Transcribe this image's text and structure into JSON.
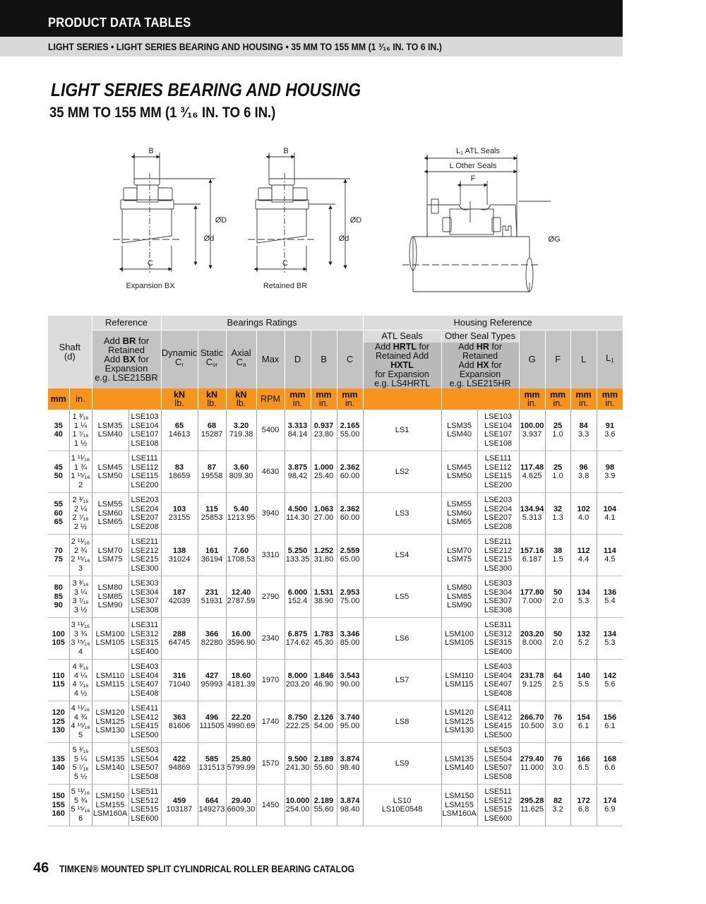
{
  "header": {
    "section": "PRODUCT DATA TABLES",
    "breadcrumb": "LIGHT SERIES • LIGHT SERIES BEARING AND HOUSING • 35 MM TO 155 MM (1 ³⁄₁₆ IN. TO 6 IN.)"
  },
  "title": "LIGHT SERIES BEARING AND HOUSING",
  "subtitle": "35 MM TO 155 MM (1 ³⁄₁₆ IN. TO 6 IN.)",
  "diagrams": {
    "expansion": {
      "b": "B",
      "c": "C",
      "od": "ØD",
      "id": "Ød",
      "caption": "Expansion BX"
    },
    "retained": {
      "b": "B",
      "c": "C",
      "od": "ØD",
      "id": "Ød",
      "caption": "Retained  BR"
    },
    "housing": {
      "l1": "L",
      "l1_sub": "1",
      "l1_text": " ATL Seals",
      "l": "L Other Seals",
      "f": "F",
      "g": "ØG"
    }
  },
  "table": {
    "headers": {
      "shaft": "Shaft\n(d)",
      "reference": "Reference",
      "reference_note": {
        "a1": "Add ",
        "b1": "BR",
        "c1": " for\nRetained\n",
        "a2": "Add ",
        "b2": "BX",
        "c2": " for\nExpansion\ne.g. LSE215BR"
      },
      "bearings_ratings": "Bearings Ratings",
      "dynamic": "Dynamic",
      "dynamic_sym": "C",
      "dynamic_sub": "r",
      "static": "Static",
      "static_sym": "C",
      "static_sub": "or",
      "axial": "Axial",
      "axial_sym": "C",
      "axial_sub": "a",
      "max": "Max",
      "d": "D",
      "b": "B",
      "c": "C",
      "housing_reference": "Housing Reference",
      "atl_seals": "ATL Seals",
      "atl_note": {
        "a1": "Add ",
        "b1": "HRTL",
        "c1": " for\nRetained Add ",
        "b2": "HXTL",
        "c2": "\nfor Expansion\ne.g. LS4HRTL"
      },
      "other_seals": "Other Seal Types",
      "other_note": {
        "a1": "Add ",
        "b1": "HR",
        "c1": " for Retained\nAdd ",
        "b2": "HX",
        "c2": " for\nExpansion\ne.g. LSE215HR"
      },
      "g": "G",
      "f": "F",
      "l": "L",
      "l1": "L",
      "l1_sub": "1"
    },
    "units": {
      "mm": "mm",
      "in": "in.",
      "kn": "kN",
      "lb": "lb.",
      "rpm": "RPM",
      "mm_in_top": "mm",
      "mm_in_bottom": "in."
    },
    "rows": [
      {
        "mm": [
          "35",
          "40"
        ],
        "inch": [
          "1 ³⁄₁₆",
          "1 ¼",
          "1 ⁷⁄₁₆",
          "1 ½"
        ],
        "lsm": [
          "LSM35",
          "LSM40"
        ],
        "lse": [
          "LSE103",
          "LSE104",
          "LSE107",
          "LSE108"
        ],
        "dynamic": [
          "65",
          "14613"
        ],
        "static": [
          "68",
          "15287"
        ],
        "axial": [
          "3.20",
          "719.38"
        ],
        "rpm": "5400",
        "D": [
          "3.313",
          "84.14"
        ],
        "B": [
          "0.937",
          "23.80"
        ],
        "C": [
          "2.165",
          "55.00"
        ],
        "atl": [
          "LS1"
        ],
        "G": [
          "100.00",
          "3.937"
        ],
        "F": [
          "25",
          "1.0"
        ],
        "L": [
          "84",
          "3.3"
        ],
        "L1": [
          "91",
          "3.6"
        ]
      },
      {
        "mm": [
          "45",
          "50"
        ],
        "inch": [
          "1 ¹¹⁄₁₆",
          "1 ¾",
          "1 ¹⁵⁄₁₆",
          "2"
        ],
        "lsm": [
          "LSM45",
          "LSM50"
        ],
        "lse": [
          "LSE111",
          "LSE112",
          "LSE115",
          "LSE200"
        ],
        "dynamic": [
          "83",
          "18659"
        ],
        "static": [
          "87",
          "19558"
        ],
        "axial": [
          "3.60",
          "809.30"
        ],
        "rpm": "4630",
        "D": [
          "3.875",
          "98.42"
        ],
        "B": [
          "1.000",
          "25.40"
        ],
        "C": [
          "2.362",
          "60.00"
        ],
        "atl": [
          "LS2"
        ],
        "G": [
          "117.48",
          "4.625"
        ],
        "F": [
          "25",
          "1.0"
        ],
        "L": [
          "96",
          "3.8"
        ],
        "L1": [
          "98",
          "3.9"
        ]
      },
      {
        "mm": [
          "55",
          "60",
          "65"
        ],
        "inch": [
          "2 ³⁄₁₆",
          "2 ¼",
          "2 ⁷⁄₁₆",
          "2 ½"
        ],
        "lsm": [
          "LSM55",
          "LSM60",
          "LSM65"
        ],
        "lse": [
          "LSE203",
          "LSE204",
          "LSE207",
          "LSE208"
        ],
        "dynamic": [
          "103",
          "23155"
        ],
        "static": [
          "115",
          "25853"
        ],
        "axial": [
          "5.40",
          "1213.95"
        ],
        "rpm": "3940",
        "D": [
          "4.500",
          "114.30"
        ],
        "B": [
          "1.063",
          "27.00"
        ],
        "C": [
          "2.362",
          "60.00"
        ],
        "atl": [
          "LS3"
        ],
        "G": [
          "134.94",
          "5.313"
        ],
        "F": [
          "32",
          "1.3"
        ],
        "L": [
          "102",
          "4.0"
        ],
        "L1": [
          "104",
          "4.1"
        ]
      },
      {
        "mm": [
          "70",
          "75"
        ],
        "inch": [
          "2 ¹¹⁄₁₆",
          "2 ¾",
          "2 ¹⁵⁄₁₆",
          "3"
        ],
        "lsm": [
          "LSM70",
          "LSM75"
        ],
        "lse": [
          "LSE211",
          "LSE212",
          "LSE215",
          "LSE300"
        ],
        "dynamic": [
          "138",
          "31024"
        ],
        "static": [
          "161",
          "36194"
        ],
        "axial": [
          "7.60",
          "1708.53"
        ],
        "rpm": "3310",
        "D": [
          "5.250",
          "133.35"
        ],
        "B": [
          "1.252",
          "31.80"
        ],
        "C": [
          "2.559",
          "65.00"
        ],
        "atl": [
          "LS4"
        ],
        "G": [
          "157.16",
          "6.187"
        ],
        "F": [
          "38",
          "1.5"
        ],
        "L": [
          "112",
          "4.4"
        ],
        "L1": [
          "114",
          "4.5"
        ]
      },
      {
        "mm": [
          "80",
          "85",
          "90"
        ],
        "inch": [
          "3 ³⁄₁₆",
          "3 ¼",
          "3 ⁷⁄₁₆",
          "3 ½"
        ],
        "lsm": [
          "LSM80",
          "LSM85",
          "LSM90"
        ],
        "lse": [
          "LSE303",
          "LSE304",
          "LSE307",
          "LSE308"
        ],
        "dynamic": [
          "187",
          "42039"
        ],
        "static": [
          "231",
          "51931"
        ],
        "axial": [
          "12.40",
          "2787.59"
        ],
        "rpm": "2790",
        "D": [
          "6.000",
          "152.4"
        ],
        "B": [
          "1.531",
          "38.90"
        ],
        "C": [
          "2.953",
          "75.00"
        ],
        "atl": [
          "LS5"
        ],
        "G": [
          "177.80",
          "7.000"
        ],
        "F": [
          "50",
          "2.0"
        ],
        "L": [
          "134",
          "5.3"
        ],
        "L1": [
          "136",
          "5.4"
        ]
      },
      {
        "mm": [
          "100",
          "105"
        ],
        "inch": [
          "3 ¹¹⁄₁₆",
          "3 ¾",
          "3 ¹⁵⁄₁₆",
          "4"
        ],
        "lsm": [
          "LSM100",
          "LSM105"
        ],
        "lse": [
          "LSE311",
          "LSE312",
          "LSE315",
          "LSE400"
        ],
        "dynamic": [
          "288",
          "64745"
        ],
        "static": [
          "366",
          "82280"
        ],
        "axial": [
          "16.00",
          "3596.90"
        ],
        "rpm": "2340",
        "D": [
          "6.875",
          "174.62"
        ],
        "B": [
          "1.783",
          "45.30"
        ],
        "C": [
          "3.346",
          "85.00"
        ],
        "atl": [
          "LS6"
        ],
        "G": [
          "203.20",
          "8.000"
        ],
        "F": [
          "50",
          "2.0"
        ],
        "L": [
          "132",
          "5.2"
        ],
        "L1": [
          "134",
          "5.3"
        ]
      },
      {
        "mm": [
          "110",
          "115"
        ],
        "inch": [
          "4 ³⁄₁₆",
          "4 ¼",
          "4 ⁷⁄₁₆",
          "4 ½"
        ],
        "lsm": [
          "LSM110",
          "LSM115"
        ],
        "lse": [
          "LSE403",
          "LSE404",
          "LSE407",
          "LSE408"
        ],
        "dynamic": [
          "316",
          "71040"
        ],
        "static": [
          "427",
          "95993"
        ],
        "axial": [
          "18.60",
          "4181.39"
        ],
        "rpm": "1970",
        "D": [
          "8.000",
          "203.20"
        ],
        "B": [
          "1.846",
          "46.90"
        ],
        "C": [
          "3.543",
          "90.00"
        ],
        "atl": [
          "LS7"
        ],
        "G": [
          "231.78",
          "9.125"
        ],
        "F": [
          "64",
          "2.5"
        ],
        "L": [
          "140",
          "5.5"
        ],
        "L1": [
          "142",
          "5.6"
        ]
      },
      {
        "mm": [
          "120",
          "125",
          "130"
        ],
        "inch": [
          "4 ¹¹⁄₁₆",
          "4 ¾",
          "4 ¹⁵⁄₁₆",
          "5"
        ],
        "lsm": [
          "LSM120",
          "LSM125",
          "LSM130"
        ],
        "lse": [
          "LSE411",
          "LSE412",
          "LSE415",
          "LSE500"
        ],
        "dynamic": [
          "363",
          "81606"
        ],
        "static": [
          "496",
          "111505"
        ],
        "axial": [
          "22.20",
          "4990.69"
        ],
        "rpm": "1740",
        "D": [
          "8.750",
          "222.25"
        ],
        "B": [
          "2.126",
          "54.00"
        ],
        "C": [
          "3.740",
          "95.00"
        ],
        "atl": [
          "LS8"
        ],
        "G": [
          "266.70",
          "10.500"
        ],
        "F": [
          "76",
          "3.0"
        ],
        "L": [
          "154",
          "6.1"
        ],
        "L1": [
          "156",
          "6.1"
        ]
      },
      {
        "mm": [
          "135",
          "140"
        ],
        "inch": [
          "5 ³⁄₁₆",
          "5 ¼",
          "5 ⁷⁄₁₆",
          "5 ½"
        ],
        "lsm": [
          "LSM135",
          "LSM140"
        ],
        "lse": [
          "LSE503",
          "LSE504",
          "LSE507",
          "LSE508"
        ],
        "dynamic": [
          "422",
          "94869"
        ],
        "static": [
          "585",
          "131513"
        ],
        "axial": [
          "25.80",
          "5799.99"
        ],
        "rpm": "1570",
        "D": [
          "9.500",
          "241.30"
        ],
        "B": [
          "2.189",
          "55.60"
        ],
        "C": [
          "3.874",
          "98.40"
        ],
        "atl": [
          "LS9"
        ],
        "G": [
          "279.40",
          "11.000"
        ],
        "F": [
          "76",
          "3.0"
        ],
        "L": [
          "166",
          "6.5"
        ],
        "L1": [
          "168",
          "6.6"
        ]
      },
      {
        "mm": [
          "150",
          "155",
          "160"
        ],
        "inch": [
          "5 ¹¹⁄₁₆",
          "5 ¾",
          "5 ¹⁵⁄₁₆",
          "6"
        ],
        "lsm": [
          "LSM150",
          "LSM155",
          "LSM160A"
        ],
        "lse": [
          "LSE511",
          "LSE512",
          "LSE515",
          "LSE600"
        ],
        "dynamic": [
          "459",
          "103187"
        ],
        "static": [
          "664",
          "149273"
        ],
        "axial": [
          "29.40",
          "6609.30"
        ],
        "rpm": "1450",
        "D": [
          "10.000",
          "254.00"
        ],
        "B": [
          "2.189",
          "55.60"
        ],
        "C": [
          "3.874",
          "98.40"
        ],
        "atl": [
          "LS10",
          "LS10E0548"
        ],
        "G": [
          "295.28",
          "11.625"
        ],
        "F": [
          "82",
          "3.2"
        ],
        "L": [
          "172",
          "6.8"
        ],
        "L1": [
          "174",
          "6.9"
        ]
      }
    ]
  },
  "footer": {
    "page": "46",
    "catalog": "TIMKEN® MOUNTED SPLIT CYLINDRICAL ROLLER BEARING CATALOG"
  },
  "colors": {
    "header_bar": "#111111",
    "subheader_bar": "#d9d9d9",
    "units_row": "#f7941d",
    "header_light": "#dcdcdc",
    "header_dark": "#c3c3c3"
  }
}
